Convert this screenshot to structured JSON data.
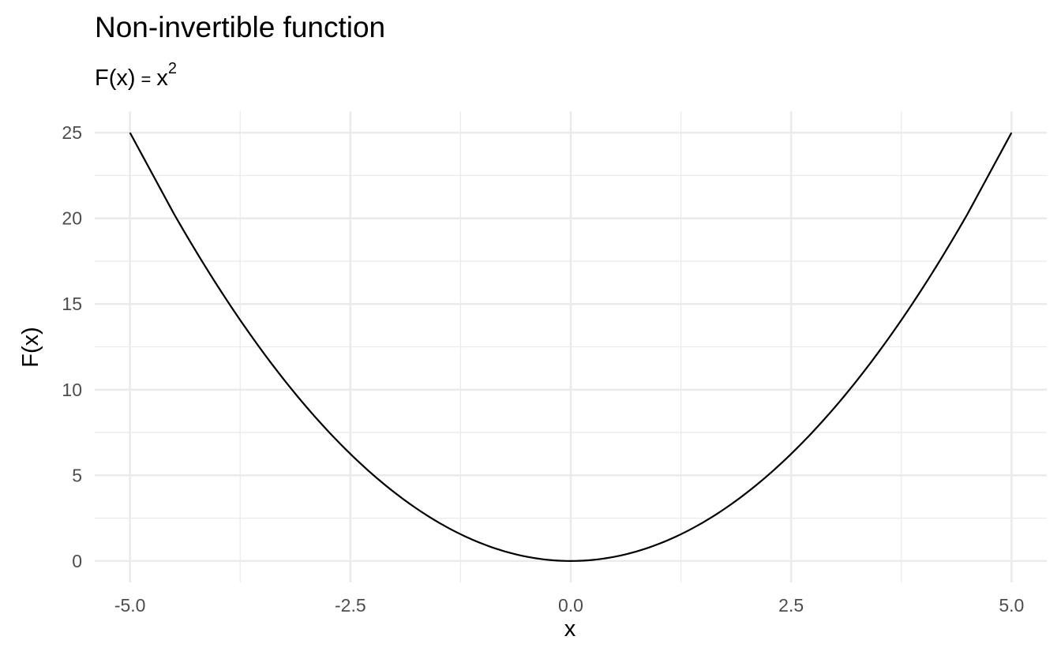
{
  "chart_data": {
    "type": "line",
    "title": "Non-invertible function",
    "subtitle": {
      "lhs": "F(x)",
      "eq": "=",
      "base": "x",
      "exp": "2"
    },
    "xlabel": "x",
    "ylabel": "F(x)",
    "xlim": [
      -5.4,
      5.4
    ],
    "ylim": [
      -1.25,
      26.25
    ],
    "x_ticks": [
      -5.0,
      -2.5,
      0.0,
      2.5,
      5.0
    ],
    "x_tick_labels": [
      "-5.0",
      "-2.5",
      "0.0",
      "2.5",
      "5.0"
    ],
    "x_minor_ticks": [
      -3.75,
      -1.25,
      1.25,
      3.75
    ],
    "y_ticks": [
      0,
      5,
      10,
      15,
      20,
      25
    ],
    "y_tick_labels": [
      "0",
      "5",
      "10",
      "15",
      "20",
      "25"
    ],
    "y_minor_ticks": [
      2.5,
      7.5,
      12.5,
      17.5,
      22.5
    ],
    "grid": true,
    "series": [
      {
        "color": "#000000",
        "x": [
          -5.0,
          -4.5,
          -4.0,
          -3.5,
          -3.0,
          -2.5,
          -2.0,
          -1.5,
          -1.0,
          -0.5,
          0.0,
          0.5,
          1.0,
          1.5,
          2.0,
          2.5,
          3.0,
          3.5,
          4.0,
          4.5,
          5.0
        ],
        "y": [
          25,
          20.25,
          16,
          12.25,
          9,
          6.25,
          4,
          2.25,
          1,
          0.25,
          0,
          0.25,
          1,
          2.25,
          4,
          6.25,
          9,
          12.25,
          16,
          20.25,
          25
        ]
      }
    ]
  }
}
